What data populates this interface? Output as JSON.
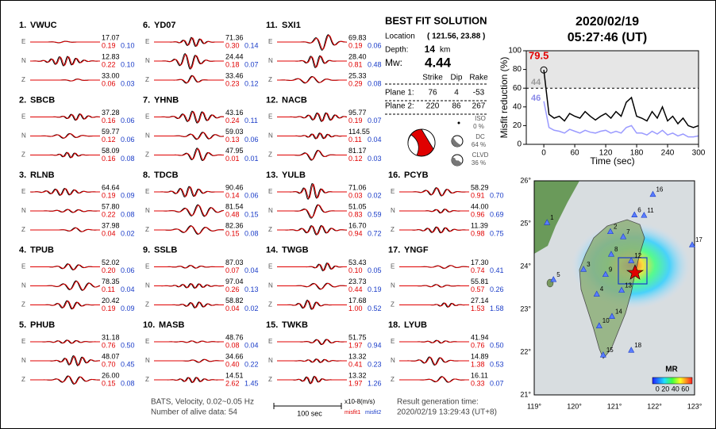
{
  "header": {
    "date": "2020/02/19",
    "time": "05:27:46  (UT)"
  },
  "solution": {
    "title": "BEST FIT SOLUTION",
    "location_label": "Location",
    "location": "( 121.56, 23.88 )",
    "depth_label": "Depth:",
    "depth": "14",
    "depth_unit": "km",
    "mw_label": "Mw:",
    "mw": "4.44",
    "headers": [
      "Strike",
      "Dip",
      "Rake"
    ],
    "planes": [
      {
        "label": "Plane 1:",
        "values": [
          "76",
          "4",
          "-53"
        ]
      },
      {
        "label": "Plane 2:",
        "values": [
          "220",
          "86",
          "267"
        ]
      }
    ],
    "components": [
      {
        "label": "ISO",
        "value": "0 %"
      },
      {
        "label": "DC",
        "value": "64 %"
      },
      {
        "label": "CLVD",
        "value": "36 %"
      }
    ]
  },
  "stations": [
    {
      "num": "1.",
      "name": "VWUC",
      "map_label": "1",
      "lon": 119.32,
      "lat": 25.02,
      "components": [
        {
          "comp": "E",
          "amp": "17.07",
          "misfit1": "0.19",
          "misfit2": "0.10"
        },
        {
          "comp": "N",
          "amp": "12.83",
          "misfit1": "0.22",
          "misfit2": "0.10"
        },
        {
          "comp": "Z",
          "amp": "33.00",
          "misfit1": "0.06",
          "misfit2": "0.03"
        }
      ]
    },
    {
      "num": "2.",
      "name": "SBCB",
      "map_label": "2",
      "lon": 120.9,
      "lat": 24.81,
      "components": [
        {
          "comp": "E",
          "amp": "37.28",
          "misfit1": "0.16",
          "misfit2": "0.06"
        },
        {
          "comp": "N",
          "amp": "59.77",
          "misfit1": "0.12",
          "misfit2": "0.06"
        },
        {
          "comp": "Z",
          "amp": "58.09",
          "misfit1": "0.16",
          "misfit2": "0.08"
        }
      ]
    },
    {
      "num": "3.",
      "name": "RLNB",
      "map_label": "3",
      "lon": 120.23,
      "lat": 23.93,
      "components": [
        {
          "comp": "E",
          "amp": "64.64",
          "misfit1": "0.19",
          "misfit2": "0.09"
        },
        {
          "comp": "N",
          "amp": "57.80",
          "misfit1": "0.22",
          "misfit2": "0.08"
        },
        {
          "comp": "Z",
          "amp": "37.98",
          "misfit1": "0.04",
          "misfit2": "0.02"
        }
      ]
    },
    {
      "num": "4.",
      "name": "TPUB",
      "map_label": "4",
      "lon": 120.56,
      "lat": 23.35,
      "components": [
        {
          "comp": "E",
          "amp": "52.02",
          "misfit1": "0.20",
          "misfit2": "0.06"
        },
        {
          "comp": "N",
          "amp": "78.35",
          "misfit1": "0.11",
          "misfit2": "0.04"
        },
        {
          "comp": "Z",
          "amp": "20.42",
          "misfit1": "0.19",
          "misfit2": "0.09"
        }
      ]
    },
    {
      "num": "5.",
      "name": "PHUB",
      "map_label": "5",
      "lon": 119.48,
      "lat": 23.69,
      "components": [
        {
          "comp": "E",
          "amp": "31.18",
          "misfit1": "0.76",
          "misfit2": "0.50"
        },
        {
          "comp": "N",
          "amp": "48.07",
          "misfit1": "0.70",
          "misfit2": "0.45"
        },
        {
          "comp": "Z",
          "amp": "26.00",
          "misfit1": "0.15",
          "misfit2": "0.08"
        }
      ]
    },
    {
      "num": "6.",
      "name": "YD07",
      "map_label": "6",
      "lon": 121.5,
      "lat": 25.2,
      "components": [
        {
          "comp": "E",
          "amp": "71.36",
          "misfit1": "0.30",
          "misfit2": "0.14"
        },
        {
          "comp": "N",
          "amp": "24.44",
          "misfit1": "0.18",
          "misfit2": "0.07"
        },
        {
          "comp": "Z",
          "amp": "33.46",
          "misfit1": "0.23",
          "misfit2": "0.12"
        }
      ]
    },
    {
      "num": "7.",
      "name": "YHNB",
      "map_label": "7",
      "lon": 121.22,
      "lat": 24.69,
      "components": [
        {
          "comp": "E",
          "amp": "43.16",
          "misfit1": "0.24",
          "misfit2": "0.11"
        },
        {
          "comp": "N",
          "amp": "59.03",
          "misfit1": "0.13",
          "misfit2": "0.06"
        },
        {
          "comp": "Z",
          "amp": "47.95",
          "misfit1": "0.01",
          "misfit2": "0.01"
        }
      ]
    },
    {
      "num": "8.",
      "name": "TDCB",
      "map_label": "8",
      "lon": 120.92,
      "lat": 24.28,
      "components": [
        {
          "comp": "E",
          "amp": "90.46",
          "misfit1": "0.14",
          "misfit2": "0.06"
        },
        {
          "comp": "N",
          "amp": "81.54",
          "misfit1": "0.48",
          "misfit2": "0.15"
        },
        {
          "comp": "Z",
          "amp": "82.36",
          "misfit1": "0.15",
          "misfit2": "0.08"
        }
      ]
    },
    {
      "num": "9.",
      "name": "SSLB",
      "map_label": "9",
      "lon": 120.78,
      "lat": 23.81,
      "components": [
        {
          "comp": "E",
          "amp": "87.03",
          "misfit1": "0.07",
          "misfit2": "0.04"
        },
        {
          "comp": "N",
          "amp": "97.04",
          "misfit1": "0.26",
          "misfit2": "0.13"
        },
        {
          "comp": "Z",
          "amp": "58.82",
          "misfit1": "0.04",
          "misfit2": "0.02"
        }
      ]
    },
    {
      "num": "10.",
      "name": "MASB",
      "map_label": "10",
      "lon": 120.62,
      "lat": 22.61,
      "components": [
        {
          "comp": "E",
          "amp": "48.76",
          "misfit1": "0.08",
          "misfit2": "0.04"
        },
        {
          "comp": "N",
          "amp": "34.66",
          "misfit1": "0.40",
          "misfit2": "0.22"
        },
        {
          "comp": "Z",
          "amp": "14.51",
          "misfit1": "2.62",
          "misfit2": "1.45"
        }
      ]
    },
    {
      "num": "11.",
      "name": "SXI1",
      "map_label": "11",
      "lon": 121.74,
      "lat": 25.19,
      "components": [
        {
          "comp": "E",
          "amp": "69.83",
          "misfit1": "0.19",
          "misfit2": "0.06"
        },
        {
          "comp": "N",
          "amp": "28.40",
          "misfit1": "0.81",
          "misfit2": "0.48"
        },
        {
          "comp": "Z",
          "amp": "25.33",
          "misfit1": "0.29",
          "misfit2": "0.08"
        }
      ]
    },
    {
      "num": "12.",
      "name": "NACB",
      "map_label": "12",
      "lon": 121.42,
      "lat": 24.13,
      "components": [
        {
          "comp": "E",
          "amp": "95.77",
          "misfit1": "0.19",
          "misfit2": "0.07"
        },
        {
          "comp": "N",
          "amp": "114.55",
          "misfit1": "0.11",
          "misfit2": "0.04"
        },
        {
          "comp": "Z",
          "amp": "81.17",
          "misfit1": "0.12",
          "misfit2": "0.03"
        }
      ]
    },
    {
      "num": "13.",
      "name": "YULB",
      "map_label": "13",
      "lon": 121.18,
      "lat": 23.44,
      "components": [
        {
          "comp": "E",
          "amp": "71.06",
          "misfit1": "0.03",
          "misfit2": "0.02"
        },
        {
          "comp": "N",
          "amp": "51.05",
          "misfit1": "0.83",
          "misfit2": "0.59"
        },
        {
          "comp": "Z",
          "amp": "16.70",
          "misfit1": "0.94",
          "misfit2": "0.72"
        }
      ]
    },
    {
      "num": "14.",
      "name": "TWGB",
      "map_label": "14",
      "lon": 120.94,
      "lat": 22.83,
      "components": [
        {
          "comp": "E",
          "amp": "53.43",
          "misfit1": "0.10",
          "misfit2": "0.05"
        },
        {
          "comp": "N",
          "amp": "23.73",
          "misfit1": "0.44",
          "misfit2": "0.19"
        },
        {
          "comp": "Z",
          "amp": "17.68",
          "misfit1": "1.00",
          "misfit2": "0.52"
        }
      ]
    },
    {
      "num": "15.",
      "name": "TWKB",
      "map_label": "15",
      "lon": 120.72,
      "lat": 21.93,
      "components": [
        {
          "comp": "E",
          "amp": "51.75",
          "misfit1": "1.97",
          "misfit2": "0.94"
        },
        {
          "comp": "N",
          "amp": "13.32",
          "misfit1": "0.41",
          "misfit2": "0.23"
        },
        {
          "comp": "Z",
          "amp": "13.32",
          "misfit1": "1.97",
          "misfit2": "1.26"
        }
      ]
    },
    {
      "num": "16.",
      "name": "PCYB",
      "map_label": "16",
      "lon": 121.96,
      "lat": 25.68,
      "components": [
        {
          "comp": "E",
          "amp": "58.29",
          "misfit1": "0.91",
          "misfit2": "0.70"
        },
        {
          "comp": "N",
          "amp": "44.00",
          "misfit1": "0.96",
          "misfit2": "0.69"
        },
        {
          "comp": "Z",
          "amp": "11.39",
          "misfit1": "0.98",
          "misfit2": "0.75"
        }
      ]
    },
    {
      "num": "17.",
      "name": "YNGF",
      "map_label": "17",
      "lon": 122.94,
      "lat": 24.5,
      "components": [
        {
          "comp": "E",
          "amp": "17.30",
          "misfit1": "0.74",
          "misfit2": "0.41"
        },
        {
          "comp": "N",
          "amp": "55.81",
          "misfit1": "0.57",
          "misfit2": "0.26"
        },
        {
          "comp": "Z",
          "amp": "27.14",
          "misfit1": "1.53",
          "misfit2": "1.58"
        }
      ]
    },
    {
      "num": "18.",
      "name": "LYUB",
      "map_label": "18",
      "lon": 121.42,
      "lat": 22.04,
      "components": [
        {
          "comp": "E",
          "amp": "41.94",
          "misfit1": "0.76",
          "misfit2": "0.50"
        },
        {
          "comp": "N",
          "amp": "14.89",
          "misfit1": "1.38",
          "misfit2": "0.53"
        },
        {
          "comp": "Z",
          "amp": "16.11",
          "misfit1": "0.33",
          "misfit2": "0.07"
        }
      ]
    }
  ],
  "chart_data": {
    "type": "line",
    "xlabel": "Time (sec)",
    "ylabel": "Misfit reduction (%)",
    "x": [
      0,
      10,
      20,
      30,
      40,
      50,
      60,
      70,
      80,
      90,
      100,
      110,
      120,
      130,
      140,
      150,
      160,
      170,
      180,
      190,
      200,
      210,
      220,
      230,
      240,
      250,
      260,
      270,
      280,
      290,
      300
    ],
    "series": [
      {
        "color": "#000000",
        "values": [
          79.5,
          32,
          28,
          30,
          25,
          33,
          30,
          28,
          35,
          30,
          26,
          30,
          33,
          28,
          35,
          30,
          45,
          50,
          30,
          28,
          25,
          35,
          28,
          40,
          25,
          30,
          22,
          28,
          20,
          18,
          20
        ]
      },
      {
        "color": "#9a9aff",
        "values": [
          46,
          18,
          15,
          14,
          12,
          16,
          14,
          12,
          15,
          13,
          12,
          14,
          15,
          12,
          14,
          12,
          18,
          20,
          12,
          12,
          10,
          14,
          11,
          15,
          10,
          12,
          9,
          11,
          8,
          8,
          9
        ]
      }
    ],
    "annotations": [
      {
        "text": "79.5",
        "color": "#e00000"
      },
      {
        "text": "44",
        "color": "#999999"
      },
      {
        "text": "46",
        "color": "#8a8ae8"
      }
    ],
    "reference_line": 60,
    "xlim": [
      -34,
      300
    ],
    "xticks": [
      0,
      60,
      120,
      180,
      240,
      300
    ],
    "ylim": [
      0,
      100
    ],
    "yticks": [
      0,
      20,
      40,
      60,
      80,
      100
    ]
  },
  "map": {
    "lat_ticks": [
      "21°",
      "22°",
      "23°",
      "24°",
      "25°",
      "26°"
    ],
    "lon_ticks": [
      "119°",
      "120°",
      "121°",
      "122°",
      "123°"
    ],
    "colorbar_title": "MR",
    "colorbar_labels": "0 20 40 60"
  },
  "footer": {
    "method": "BATS, Velocity, 0.02~0.05 Hz",
    "alive": "Number of alive data: 54",
    "scale": "100 sec",
    "units": "x10-8(m/s)",
    "misfit1": "misfit1",
    "misfit2": "misfit2",
    "gen_label": "Result generation time:",
    "gen_time": "2020/02/19 13:29:43 (UT+8)"
  }
}
